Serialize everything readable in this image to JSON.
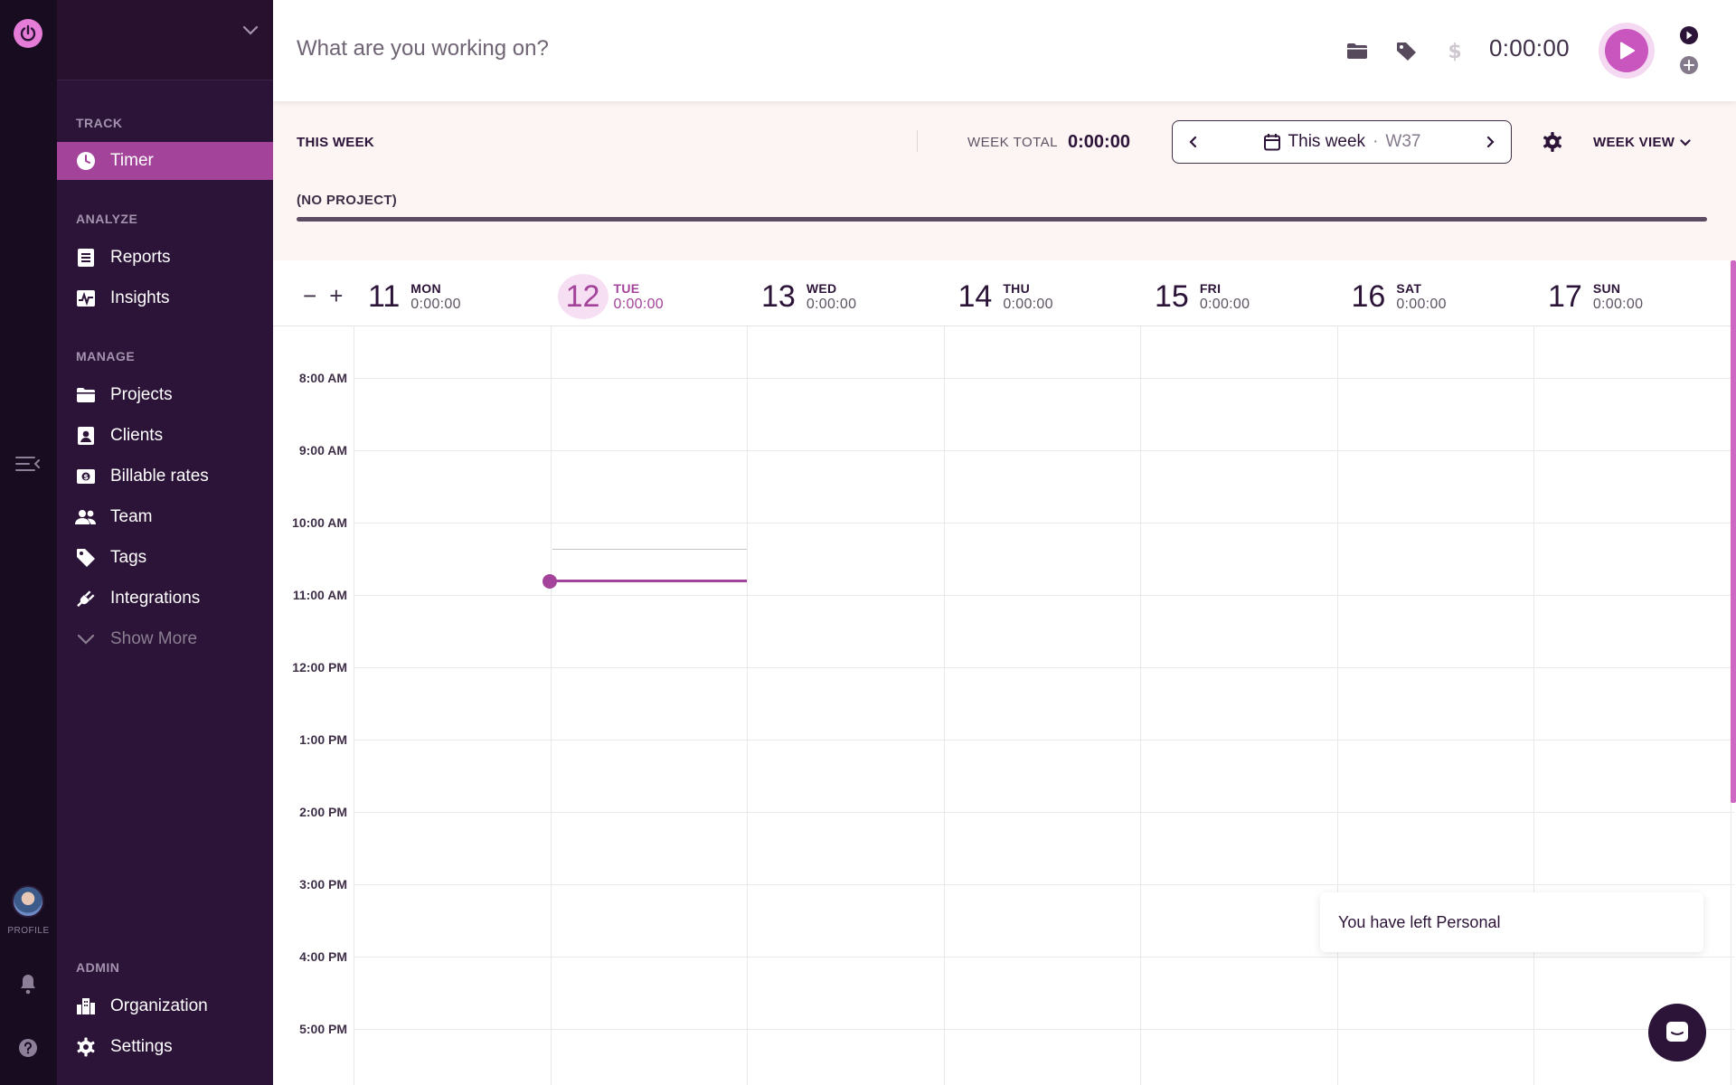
{
  "sidebar": {
    "sections": {
      "track": "TRACK",
      "analyze": "ANALYZE",
      "manage": "MANAGE",
      "admin": "ADMIN"
    },
    "items": {
      "timer": "Timer",
      "reports": "Reports",
      "insights": "Insights",
      "projects": "Projects",
      "clients": "Clients",
      "billable_rates": "Billable rates",
      "team": "Team",
      "tags": "Tags",
      "integrations": "Integrations",
      "show_more": "Show More",
      "organization": "Organization",
      "settings": "Settings"
    },
    "active_item": "timer"
  },
  "rail": {
    "profile_label": "PROFILE"
  },
  "topbar": {
    "placeholder": "What are you working on?",
    "timer": "0:00:00"
  },
  "summary": {
    "this_week": "THIS WEEK",
    "week_total_label": "WEEK TOTAL",
    "week_total_value": "0:00:00",
    "week_picker": {
      "label": "This week",
      "separator": "·",
      "week": "W37"
    },
    "view_label": "WEEK VIEW",
    "project_label": "(NO PROJECT)"
  },
  "calendar": {
    "days": [
      {
        "num": "11",
        "name": "MON",
        "total": "0:00:00"
      },
      {
        "num": "12",
        "name": "TUE",
        "total": "0:00:00",
        "today": true
      },
      {
        "num": "13",
        "name": "WED",
        "total": "0:00:00"
      },
      {
        "num": "14",
        "name": "THU",
        "total": "0:00:00"
      },
      {
        "num": "15",
        "name": "FRI",
        "total": "0:00:00"
      },
      {
        "num": "16",
        "name": "SAT",
        "total": "0:00:00"
      },
      {
        "num": "17",
        "name": "SUN",
        "total": "0:00:00"
      }
    ],
    "times": [
      "8:00 AM",
      "9:00 AM",
      "10:00 AM",
      "11:00 AM",
      "12:00 PM",
      "1:00 PM",
      "2:00 PM",
      "3:00 PM",
      "4:00 PM",
      "5:00 PM"
    ]
  },
  "toast": "You have left Personal",
  "colors": {
    "accent": "#a3439a",
    "sidebar": "#2c1338",
    "rail": "#170c20",
    "logo": "#e57cd8"
  }
}
